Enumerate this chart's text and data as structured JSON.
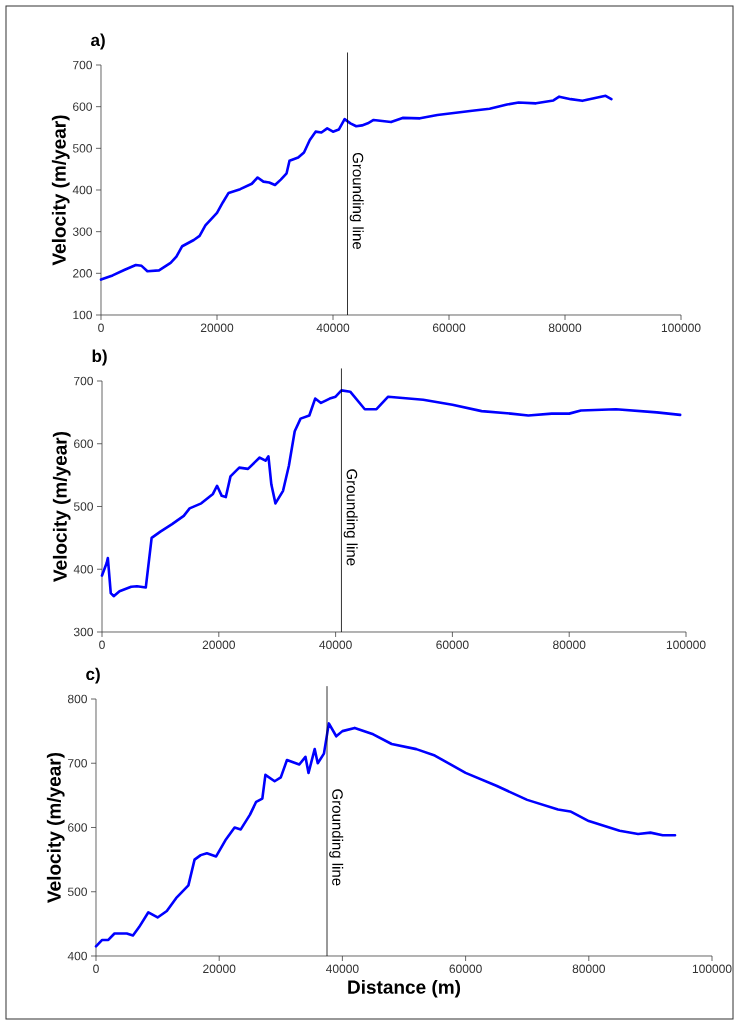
{
  "chart_data": [
    {
      "type": "line",
      "title": "a)",
      "ylabel": "Velocity (m/year)",
      "x": [
        0,
        2000,
        4000,
        6000,
        7000,
        8000,
        10000,
        12000,
        13000,
        14000,
        16000,
        17000,
        18000,
        20000,
        21000,
        22000,
        24000,
        26000,
        27000,
        28000,
        29000,
        30000,
        31000,
        32000,
        32500,
        34000,
        35000,
        36000,
        37000,
        38000,
        39000,
        40000,
        41000,
        42000,
        43000,
        44000,
        45000,
        46000,
        47000,
        50000,
        52000,
        55000,
        58000,
        61000,
        64000,
        67000,
        70000,
        72000,
        75000,
        78000,
        79000,
        81000,
        83000,
        85000,
        87000,
        88000
      ],
      "series": [
        {
          "color": "#0000ff",
          "values": [
            185,
            195,
            208,
            220,
            218,
            205,
            207,
            225,
            240,
            265,
            280,
            290,
            315,
            345,
            370,
            393,
            402,
            415,
            430,
            420,
            418,
            412,
            425,
            440,
            470,
            478,
            490,
            520,
            540,
            538,
            548,
            540,
            545,
            570,
            560,
            553,
            555,
            560,
            568,
            563,
            573,
            572,
            580,
            585,
            590,
            595,
            605,
            610,
            608,
            615,
            624,
            618,
            614,
            620,
            626,
            618
          ]
        }
      ],
      "xlim": [
        0,
        100000
      ],
      "xticks": [
        0,
        20000,
        40000,
        60000,
        80000,
        100000
      ],
      "ylim": [
        100,
        700
      ],
      "yticks": [
        100,
        200,
        300,
        400,
        500,
        600,
        700
      ],
      "ref_lines": [
        {
          "axis": "x",
          "value": 42500,
          "label": "Grounding line",
          "color": "#000000"
        }
      ]
    },
    {
      "type": "line",
      "title": "b)",
      "ylabel": "Velocity (m/year)",
      "x": [
        0,
        800,
        1000,
        1500,
        2000,
        3000,
        5000,
        6000,
        7500,
        8500,
        10000,
        12000,
        14000,
        15000,
        17000,
        19000,
        19700,
        20500,
        21200,
        22000,
        23500,
        25000,
        27000,
        28000,
        28500,
        29000,
        29700,
        31000,
        32000,
        33000,
        34000,
        35500,
        36500,
        37500,
        39000,
        40000,
        41000,
        42500,
        45000,
        47000,
        49000,
        55000,
        60000,
        65000,
        70000,
        73000,
        77000,
        80000,
        82000,
        88000,
        95000,
        99000
      ],
      "series": [
        {
          "color": "#0000ff",
          "values": [
            390,
            410,
            418,
            362,
            357,
            365,
            372,
            373,
            371,
            450,
            460,
            472,
            485,
            497,
            505,
            520,
            533,
            517,
            515,
            548,
            562,
            560,
            578,
            573,
            580,
            535,
            505,
            525,
            565,
            620,
            640,
            645,
            672,
            665,
            672,
            675,
            685,
            683,
            655,
            655,
            675,
            670,
            662,
            652,
            648,
            645,
            648,
            648,
            653,
            655,
            650,
            646
          ]
        }
      ],
      "xlim": [
        0,
        100000
      ],
      "xticks": [
        0,
        20000,
        40000,
        60000,
        80000,
        100000
      ],
      "ylim": [
        300,
        700
      ],
      "yticks": [
        300,
        400,
        500,
        600,
        700
      ],
      "ref_lines": [
        {
          "axis": "x",
          "value": 41000,
          "label": "Grounding line",
          "color": "#000000"
        }
      ]
    },
    {
      "type": "line",
      "title": "c)",
      "ylabel": "Velocity (m/year)",
      "xlabel": "Distance (m)",
      "x": [
        0,
        1000,
        2000,
        3000,
        5000,
        6000,
        7000,
        8500,
        10000,
        11500,
        13000,
        15000,
        16000,
        17000,
        18000,
        19500,
        21000,
        22500,
        23500,
        25000,
        26000,
        27000,
        27500,
        29000,
        30000,
        31000,
        33000,
        34000,
        34500,
        35500,
        36000,
        37000,
        37800,
        39000,
        40000,
        42000,
        45000,
        48000,
        52000,
        55000,
        60000,
        65000,
        70000,
        75000,
        77000,
        80000,
        85000,
        88000,
        90000,
        92000,
        94000
      ],
      "series": [
        {
          "color": "#0000ff",
          "values": [
            415,
            425,
            425,
            435,
            435,
            432,
            445,
            468,
            460,
            470,
            490,
            510,
            550,
            557,
            560,
            555,
            580,
            600,
            597,
            620,
            640,
            645,
            682,
            672,
            678,
            705,
            698,
            710,
            685,
            722,
            700,
            715,
            762,
            742,
            750,
            755,
            745,
            730,
            722,
            712,
            685,
            665,
            643,
            628,
            625,
            610,
            595,
            590,
            592,
            588,
            588
          ]
        }
      ],
      "xlim": [
        0,
        100000
      ],
      "xticks": [
        0,
        20000,
        40000,
        60000,
        80000,
        100000
      ],
      "ylim": [
        400,
        800
      ],
      "yticks": [
        400,
        500,
        600,
        700,
        800
      ],
      "ref_lines": [
        {
          "axis": "x",
          "value": 37500,
          "label": "Grounding line",
          "color": "#000000"
        }
      ]
    }
  ]
}
